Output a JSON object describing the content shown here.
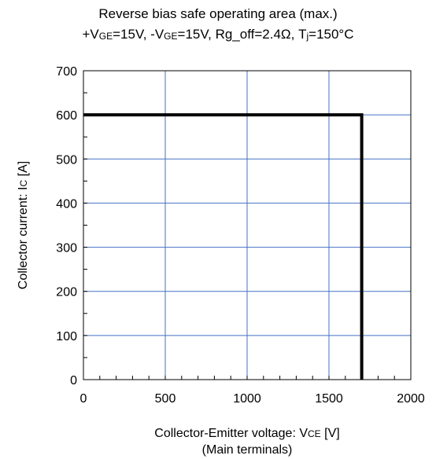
{
  "chart_data": {
    "type": "line",
    "title_line1": "Reverse bias safe operating area (max.)",
    "title_line2": {
      "p1": "+V",
      "s1": "GE",
      "p2": "=15V, -V",
      "s2": "GE",
      "p3": "=15V, Rg_off=2.4Ω, T",
      "s3": "j",
      "p4": "=150°C"
    },
    "xlabel": {
      "p1": "Collector-Emitter voltage: V",
      "s1": "CE",
      "p2": " [V]"
    },
    "xlabel_line2": "(Main terminals)",
    "ylabel": {
      "p1": "Collector current: I",
      "s1": "C",
      "p2": " [A]"
    },
    "xlim": [
      0,
      2000
    ],
    "ylim": [
      0,
      700
    ],
    "xticks": [
      0,
      500,
      1000,
      1500,
      2000
    ],
    "yticks": [
      0,
      100,
      200,
      300,
      400,
      500,
      600,
      700
    ],
    "xminor_step": 100,
    "yminor_step": 50,
    "grid": true,
    "grid_color": "#4472c4",
    "series": [
      {
        "color": "#000000",
        "x": [
          0,
          1700,
          1700
        ],
        "y": [
          600,
          600,
          0
        ]
      }
    ]
  }
}
